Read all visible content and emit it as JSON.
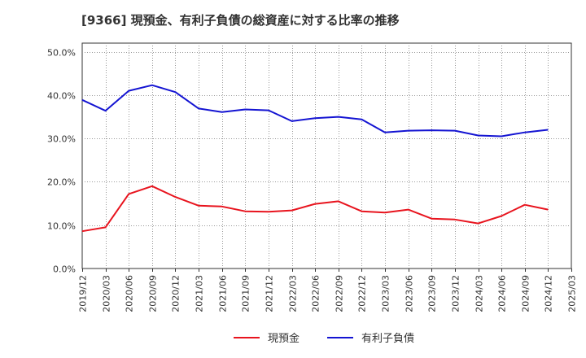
{
  "chart_data": {
    "type": "line",
    "title": "[9366]  現預金、有利子負債の総資産に対する比率の推移",
    "xlabel": "",
    "ylabel": "",
    "ylim": [
      0,
      52
    ],
    "y_ticks": [
      0,
      10,
      20,
      30,
      40,
      50
    ],
    "y_tick_labels": [
      "0.0%",
      "10.0%",
      "20.0%",
      "30.0%",
      "40.0%",
      "50.0%"
    ],
    "grid": true,
    "legend_position": "bottom-center",
    "x": [
      "2019/12",
      "2020/03",
      "2020/06",
      "2020/09",
      "2020/12",
      "2021/03",
      "2021/06",
      "2021/09",
      "2021/12",
      "2022/03",
      "2022/06",
      "2022/09",
      "2022/12",
      "2023/03",
      "2023/06",
      "2023/09",
      "2023/12",
      "2024/03",
      "2024/06",
      "2024/09",
      "2024/12",
      "2025/03"
    ],
    "series": [
      {
        "name": "現預金",
        "color": "#e8141e",
        "values": [
          8.6,
          9.5,
          17.2,
          19.0,
          16.5,
          14.5,
          14.3,
          13.2,
          13.1,
          13.4,
          14.9,
          15.5,
          13.2,
          12.9,
          13.6,
          11.5,
          11.3,
          10.4,
          12.1,
          14.7,
          13.6,
          null
        ]
      },
      {
        "name": "有利子負債",
        "color": "#1414d2",
        "values": [
          38.9,
          36.4,
          41.0,
          42.3,
          40.7,
          36.9,
          36.1,
          36.7,
          36.5,
          34.0,
          34.7,
          35.0,
          34.4,
          31.4,
          31.8,
          31.9,
          31.8,
          30.7,
          30.5,
          31.4,
          32.0,
          null
        ]
      }
    ]
  }
}
